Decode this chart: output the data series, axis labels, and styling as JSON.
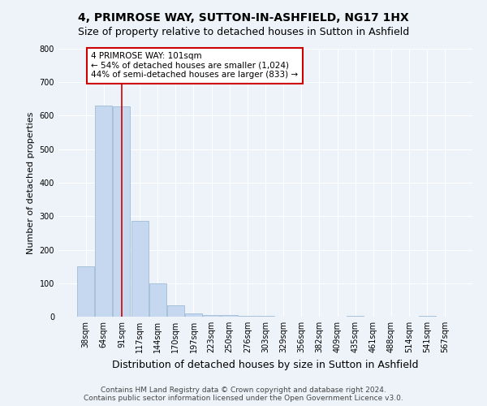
{
  "title": "4, PRIMROSE WAY, SUTTON-IN-ASHFIELD, NG17 1HX",
  "subtitle": "Size of property relative to detached houses in Sutton in Ashfield",
  "xlabel": "Distribution of detached houses by size in Sutton in Ashfield",
  "ylabel": "Number of detached properties",
  "categories": [
    "38sqm",
    "64sqm",
    "91sqm",
    "117sqm",
    "144sqm",
    "170sqm",
    "197sqm",
    "223sqm",
    "250sqm",
    "276sqm",
    "303sqm",
    "329sqm",
    "356sqm",
    "382sqm",
    "409sqm",
    "435sqm",
    "461sqm",
    "488sqm",
    "514sqm",
    "541sqm",
    "567sqm"
  ],
  "values": [
    150,
    630,
    628,
    285,
    100,
    35,
    10,
    5,
    5,
    3,
    3,
    0,
    0,
    0,
    0,
    3,
    0,
    0,
    0,
    3,
    0
  ],
  "bar_color": "#c5d8f0",
  "bar_edge_color": "#a0bcd8",
  "red_line_index": 2,
  "annotation_text": "4 PRIMROSE WAY: 101sqm\n← 54% of detached houses are smaller (1,024)\n44% of semi-detached houses are larger (833) →",
  "annotation_box_color": "#ffffff",
  "annotation_box_edge_color": "#cc0000",
  "ylim": [
    0,
    800
  ],
  "yticks": [
    0,
    100,
    200,
    300,
    400,
    500,
    600,
    700,
    800
  ],
  "background_color": "#eef3fa",
  "grid_color": "#ffffff",
  "footer": "Contains HM Land Registry data © Crown copyright and database right 2024.\nContains public sector information licensed under the Open Government Licence v3.0.",
  "title_fontsize": 10,
  "subtitle_fontsize": 9,
  "xlabel_fontsize": 9,
  "ylabel_fontsize": 8,
  "tick_fontsize": 7,
  "footer_fontsize": 6.5,
  "annotation_fontsize": 7.5
}
